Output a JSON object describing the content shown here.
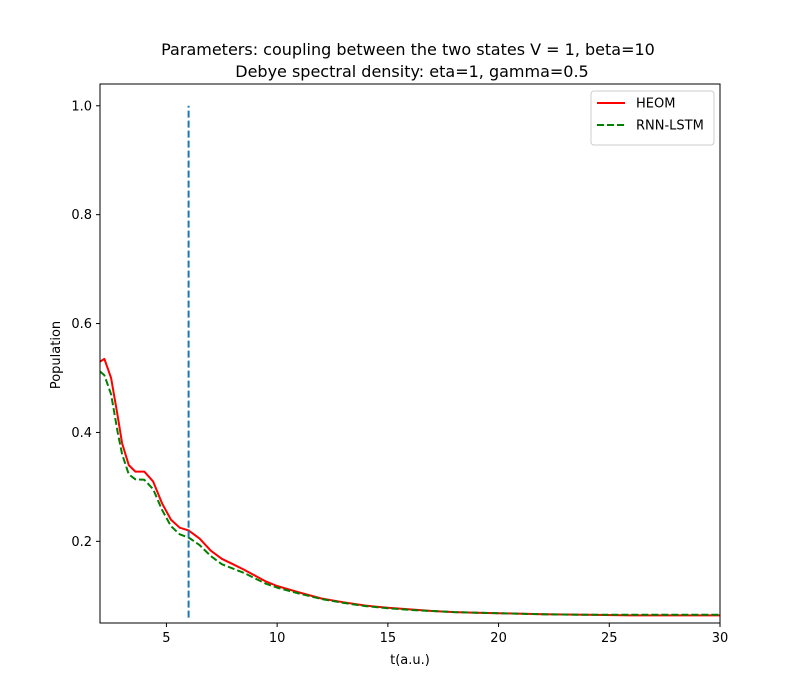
{
  "chart_data": {
    "type": "line",
    "title": [
      "Parameters: coupling between the two states V = 1, beta=10",
      "Debye spectral density: eta=1, gamma=0.5"
    ],
    "xlabel": "t(a.u.)",
    "ylabel": "Population",
    "xlim": [
      2,
      30
    ],
    "ylim": [
      0.05,
      1.04
    ],
    "xticks": [
      5,
      10,
      15,
      20,
      25,
      30
    ],
    "xtick_labels": [
      "5",
      "10",
      "15",
      "20",
      "25",
      "30"
    ],
    "yticks": [
      0.2,
      0.4,
      0.6,
      0.8,
      1.0
    ],
    "ytick_labels": [
      "0.2",
      "0.4",
      "0.6",
      "0.8",
      "1.0"
    ],
    "grid": false,
    "legend_position": "top-right",
    "series": [
      {
        "name": "HEOM",
        "color": "#ff0000",
        "style": "solid",
        "x": [
          2.0,
          2.2,
          2.5,
          2.8,
          3.0,
          3.3,
          3.6,
          4.0,
          4.4,
          4.8,
          5.2,
          5.6,
          6.0,
          6.5,
          7.0,
          7.5,
          8.0,
          8.5,
          9.0,
          9.5,
          10.0,
          11.0,
          12.0,
          13.0,
          14.0,
          15.0,
          16.0,
          17.0,
          18.0,
          19.0,
          20.0,
          22.0,
          24.0,
          26.0,
          28.0,
          30.0
        ],
        "values": [
          0.53,
          0.535,
          0.5,
          0.43,
          0.38,
          0.34,
          0.328,
          0.328,
          0.31,
          0.27,
          0.24,
          0.225,
          0.22,
          0.205,
          0.183,
          0.168,
          0.158,
          0.148,
          0.137,
          0.126,
          0.118,
          0.106,
          0.095,
          0.088,
          0.082,
          0.078,
          0.075,
          0.072,
          0.07,
          0.069,
          0.068,
          0.066,
          0.065,
          0.064,
          0.064,
          0.064
        ]
      },
      {
        "name": "RNN-LSTM",
        "color": "#008000",
        "style": "dashed",
        "x": [
          2.0,
          2.2,
          2.5,
          2.8,
          3.0,
          3.3,
          3.6,
          4.0,
          4.4,
          4.8,
          5.2,
          5.6,
          6.0,
          6.5,
          7.0,
          7.5,
          8.0,
          8.5,
          9.0,
          9.5,
          10.0,
          11.0,
          12.0,
          13.0,
          14.0,
          15.0,
          16.0,
          17.0,
          18.0,
          19.0,
          20.0,
          22.0,
          24.0,
          26.0,
          28.0,
          30.0
        ],
        "values": [
          0.512,
          0.505,
          0.47,
          0.4,
          0.36,
          0.323,
          0.314,
          0.313,
          0.296,
          0.258,
          0.228,
          0.213,
          0.207,
          0.193,
          0.173,
          0.158,
          0.15,
          0.142,
          0.132,
          0.122,
          0.115,
          0.104,
          0.094,
          0.087,
          0.081,
          0.077,
          0.074,
          0.072,
          0.07,
          0.069,
          0.068,
          0.066,
          0.065,
          0.065,
          0.065,
          0.065
        ]
      },
      {
        "name": "",
        "color": "#1f77b4",
        "style": "dashed",
        "x": [
          6,
          6
        ],
        "values": [
          0.06,
          1.0
        ]
      }
    ]
  }
}
